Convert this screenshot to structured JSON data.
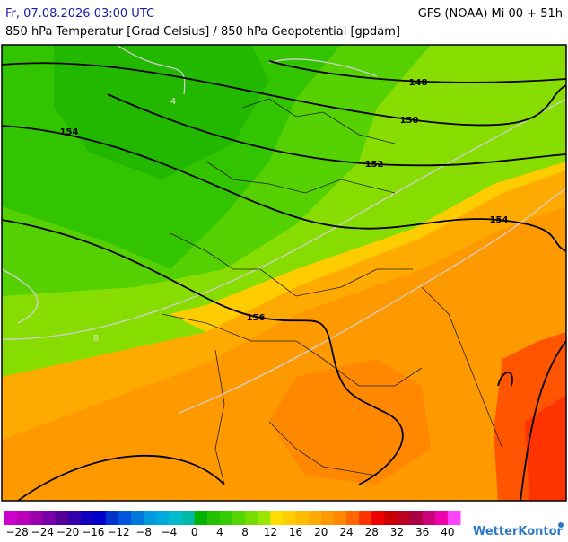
{
  "header": {
    "datetime": "Fr, 07.08.2026 03:00 UTC",
    "model": "GFS (NOAA) Mi 00 + 51h",
    "subtitle": "850 hPa Temperatur [Grad Celsius] / 850 hPa Geopotential [gpdam]"
  },
  "map": {
    "contour_labels": [
      "148",
      "150",
      "152",
      "154",
      "154",
      "156"
    ],
    "isotherm_labels": [
      "4",
      "8"
    ]
  },
  "colorbar": {
    "lim": [
      -30,
      42
    ],
    "colors": [
      "#cc00cc",
      "#bb00bb",
      "#9900aa",
      "#7700aa",
      "#550099",
      "#3300aa",
      "#1100bb",
      "#0000cc",
      "#0033cc",
      "#0055dd",
      "#0077dd",
      "#0099dd",
      "#00aadd",
      "#00bbcc",
      "#00bbaa",
      "#00b400",
      "#22c000",
      "#33cc00",
      "#55d400",
      "#77dd00",
      "#99e600",
      "#ffdd00",
      "#ffcc00",
      "#ffbb00",
      "#ffaa00",
      "#ff9900",
      "#ff8800",
      "#ff6600",
      "#ff3300",
      "#ee0000",
      "#cc0000",
      "#bb0022",
      "#aa0044",
      "#cc0077",
      "#ee00aa",
      "#ff44ff"
    ],
    "ticks": [
      {
        "value": -28,
        "label": "−28"
      },
      {
        "value": -24,
        "label": "−24"
      },
      {
        "value": -20,
        "label": "−20"
      },
      {
        "value": -16,
        "label": "−16"
      },
      {
        "value": -12,
        "label": "−12"
      },
      {
        "value": -8,
        "label": "−8"
      },
      {
        "value": -4,
        "label": "−4"
      },
      0,
      4,
      8,
      12,
      16,
      20,
      24,
      28,
      32,
      36,
      40
    ]
  },
  "logo": "WetterKontor"
}
